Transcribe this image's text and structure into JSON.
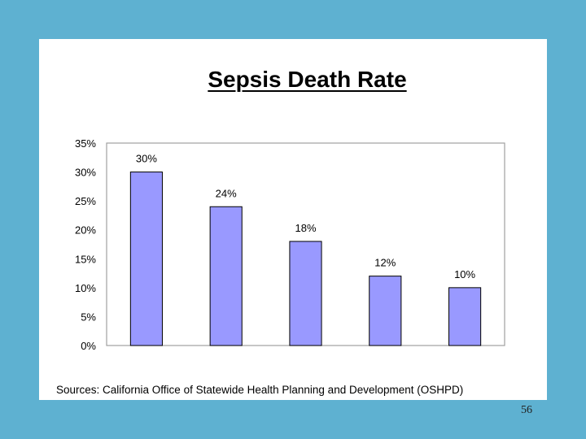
{
  "slide": {
    "title": "Sepsis Death Rate",
    "source": "Sources: California Office of Statewide Health Planning and Development (OSHPD)",
    "page_number": "56"
  },
  "chart_data": {
    "type": "bar",
    "title": "Sepsis Death Rate",
    "xlabel": "",
    "ylabel": "",
    "categories": [
      "",
      "",
      "",
      "",
      ""
    ],
    "values": [
      30,
      24,
      18,
      12,
      10
    ],
    "data_labels": [
      "30%",
      "24%",
      "18%",
      "12%",
      "10%"
    ],
    "ylim": [
      0,
      35
    ],
    "y_ticks": [
      0,
      5,
      10,
      15,
      20,
      25,
      30,
      35
    ],
    "y_tick_labels": [
      "0%",
      "5%",
      "10%",
      "15%",
      "20%",
      "25%",
      "30%",
      "35%"
    ],
    "grid": false,
    "legend": "none",
    "colors": {
      "bar_fill": "#9999ff",
      "bar_stroke": "#000000",
      "frame": "#a0a0a0",
      "background": "#5eb1d1"
    }
  }
}
